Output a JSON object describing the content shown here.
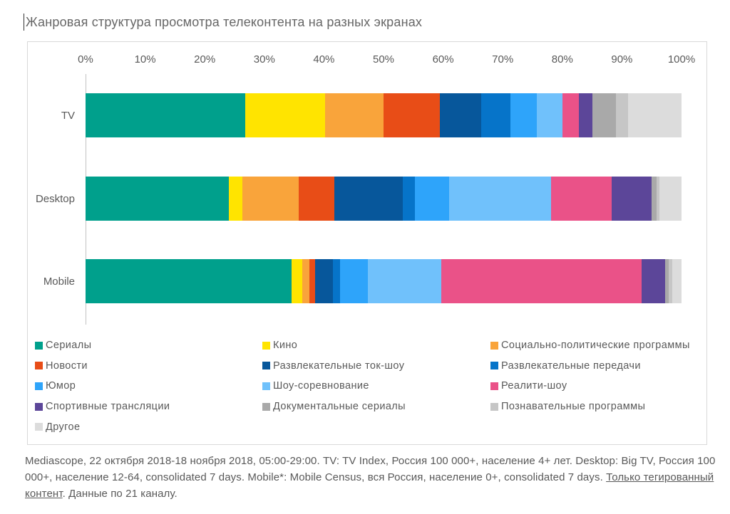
{
  "title": "Жанровая структура просмотра телеконтента на разных экранах",
  "chart_data": {
    "type": "bar",
    "orientation": "horizontal",
    "stacked": true,
    "unit": "%",
    "xlim": [
      0,
      100
    ],
    "grid": false,
    "legend_position": "bottom",
    "x_ticks": [
      "0%",
      "10%",
      "20%",
      "30%",
      "40%",
      "50%",
      "60%",
      "70%",
      "80%",
      "90%",
      "100%"
    ],
    "categories": [
      {
        "label": "Сериалы",
        "color": "#00A08C"
      },
      {
        "label": "Кино",
        "color": "#FFE400"
      },
      {
        "label": "Социально-политические программы",
        "color": "#F9A43B"
      },
      {
        "label": "Новости",
        "color": "#E84D17"
      },
      {
        "label": "Развлекательные ток-шоу",
        "color": "#07579B"
      },
      {
        "label": "Развлекательные передачи",
        "color": "#0674C9"
      },
      {
        "label": "Юмор",
        "color": "#2EA4FA"
      },
      {
        "label": "Шоу-соревнование",
        "color": "#70C1FB"
      },
      {
        "label": "Реалити-шоу",
        "color": "#EA5288"
      },
      {
        "label": "Спортивные трансляции",
        "color": "#5C4699"
      },
      {
        "label": "Документальные сериалы",
        "color": "#A9A9A9"
      },
      {
        "label": "Познавательные программы",
        "color": "#C6C6C6"
      },
      {
        "label": "Другое",
        "color": "#DCDCDC"
      }
    ],
    "series": [
      {
        "name": "TV",
        "values": [
          26.8,
          13.4,
          9.8,
          9.5,
          6.9,
          4.9,
          4.4,
          4.3,
          2.8,
          2.2,
          4.0,
          2.0,
          9.0
        ]
      },
      {
        "name": "Desktop",
        "values": [
          24.0,
          2.3,
          9.5,
          6.0,
          11.4,
          2.1,
          5.7,
          17.1,
          10.2,
          6.7,
          0.8,
          0.5,
          3.7
        ]
      },
      {
        "name": "Mobile",
        "values": [
          34.6,
          1.8,
          1.2,
          0.9,
          3.0,
          1.2,
          4.7,
          12.3,
          33.6,
          4.0,
          0.6,
          0.5,
          1.6
        ]
      }
    ]
  },
  "footer": {
    "text_before": "Mediascope, 22 октября 2018-18 ноября 2018, 05:00-29:00. TV: TV Index, Россия 100 000+, население 4+ лет. Desktop: Big TV, Россия 100 000+, население 12-64, consolidated 7 days. Mobile*: Mobile Census, вся Россия, население 0+, consolidated 7 days. ",
    "underlined": "Только тегированный контент",
    "text_after": ". Данные по 21 каналу."
  }
}
